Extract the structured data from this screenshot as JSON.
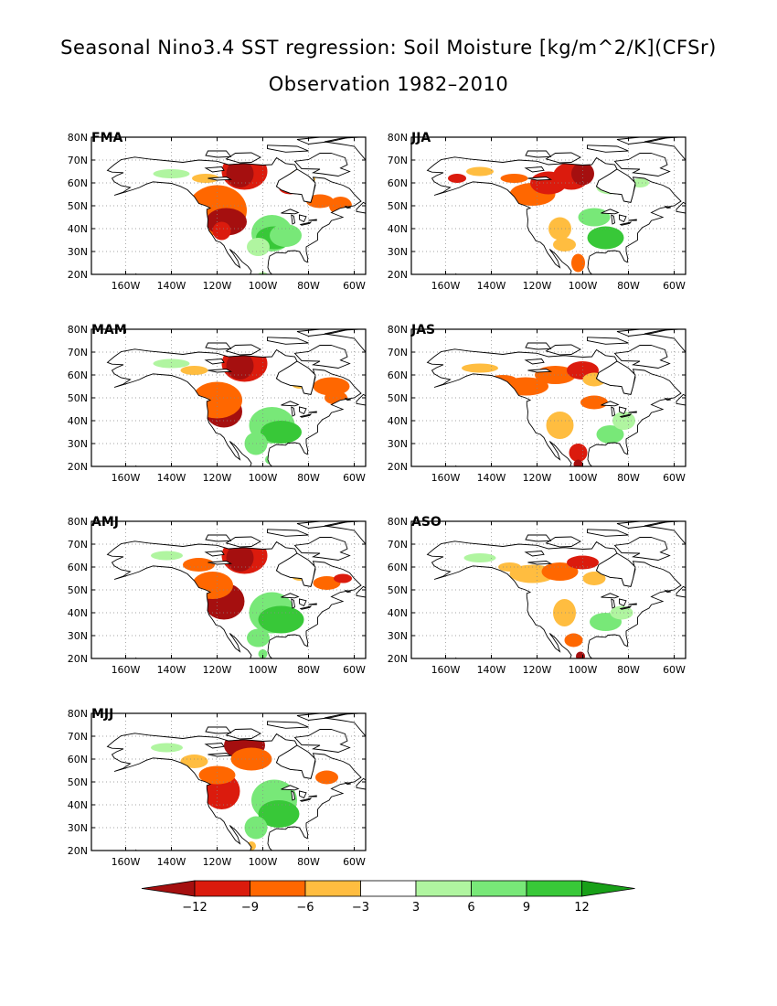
{
  "title": "Seasonal Nino3.4 SST regression: Soil Moisture [kg/m^2/K](CFSr)",
  "subtitle": "Observation 1982–2010",
  "lat_labels": [
    "80N",
    "70N",
    "60N",
    "50N",
    "40N",
    "30N",
    "20N"
  ],
  "lon_labels": [
    "160W",
    "140W",
    "120W",
    "100W",
    "80W",
    "60W"
  ],
  "panels": [
    {
      "label": "FMA",
      "variant": 0
    },
    {
      "label": "MAM",
      "variant": 1
    },
    {
      "label": "AMJ",
      "variant": 2
    },
    {
      "label": "MJJ",
      "variant": 3
    },
    {
      "label": "JJA",
      "variant": 4
    },
    {
      "label": "JAS",
      "variant": 5
    },
    {
      "label": "ASO",
      "variant": 6
    }
  ],
  "colorbar": {
    "ticks": [
      "−12",
      "−9",
      "−6",
      "−3",
      "3",
      "6",
      "9",
      "12"
    ],
    "colors": [
      "#a50f0f",
      "#db1b0d",
      "#ff6700",
      "#ffbd40",
      "#ffffff",
      "#b0f5a0",
      "#78e878",
      "#38c838",
      "#18a018"
    ]
  }
}
